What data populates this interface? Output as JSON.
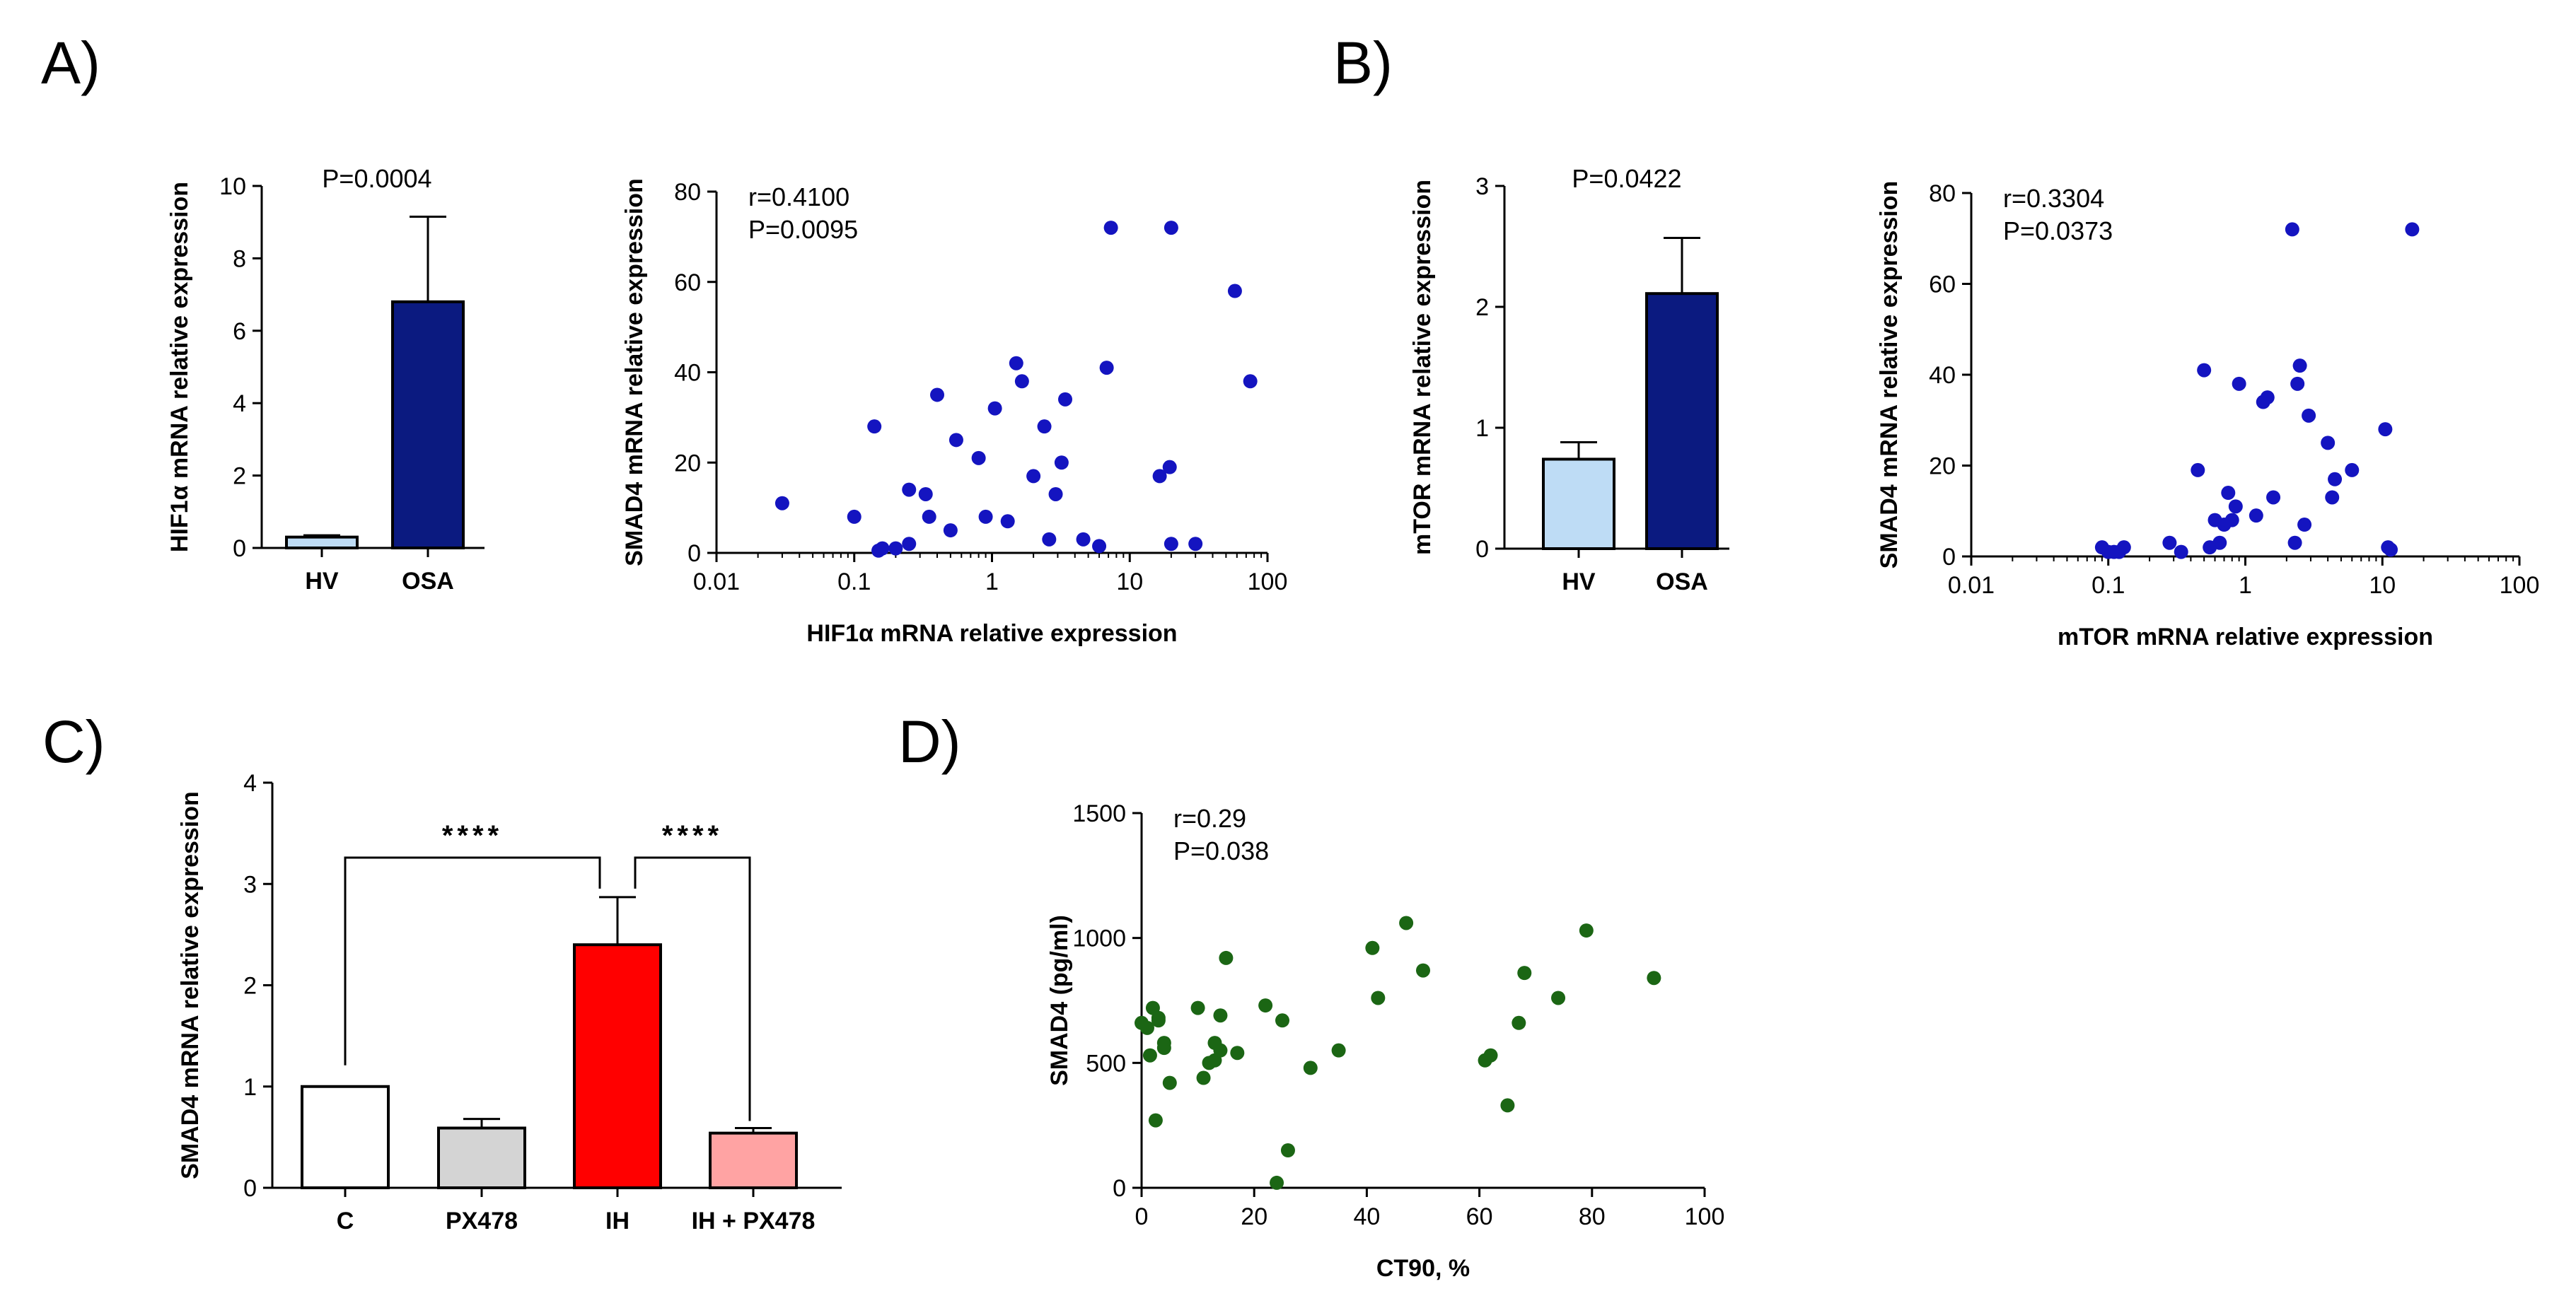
{
  "figure": {
    "panel_labels": [
      "A)",
      "B)",
      "C)",
      "D)"
    ]
  },
  "colors": {
    "hv_bar": "#bedcf5",
    "osa_bar": "#0b1a80",
    "scatter_blue": "#1414c0",
    "scatter_green": "#1b6614",
    "c_bar": "#ffffff",
    "px478_bar": "#d4d4d4",
    "ih_bar": "#ff0000",
    "ihpx_bar": "#ffa3a3"
  },
  "chart_data": [
    {
      "id": "a_bar",
      "type": "bar",
      "categories": [
        "HV",
        "OSA"
      ],
      "values": [
        0.3,
        6.8
      ],
      "errors": [
        0.05,
        2.35
      ],
      "ylabel": "HIF1α mRNA relative expression",
      "ylim": [
        0,
        10
      ],
      "yticks": [
        0,
        2,
        4,
        6,
        8,
        10
      ],
      "annotations": [
        "P=0.0004"
      ]
    },
    {
      "id": "a_scatter",
      "type": "scatter",
      "xscale": "log",
      "xlabel": "HIF1α mRNA relative expression",
      "ylabel": "SMAD4 mRNA relative expression",
      "xlim": [
        0.01,
        100
      ],
      "ylim": [
        0,
        80
      ],
      "xticks": [
        "0.01",
        "0.1",
        "1",
        "10",
        "100"
      ],
      "yticks": [
        0,
        20,
        40,
        60,
        80
      ],
      "annotations": [
        "r=0.4100",
        "P=0.0095"
      ],
      "x": [
        0.03,
        0.1,
        0.14,
        0.16,
        0.2,
        0.15,
        0.25,
        0.25,
        0.33,
        0.35,
        0.4,
        0.5,
        0.55,
        0.8,
        0.9,
        1.05,
        1.3,
        1.5,
        1.65,
        2.0,
        2.4,
        2.6,
        2.9,
        3.2,
        3.4,
        4.6,
        6.0,
        6.8,
        7.3,
        16.5,
        19.5,
        20.0,
        20.0,
        30.0,
        58.0,
        75.0
      ],
      "y": [
        11,
        8,
        28,
        1,
        1,
        0.5,
        2,
        14,
        13,
        8,
        35,
        5,
        25,
        21,
        8,
        32,
        7,
        42,
        38,
        17,
        28,
        3,
        13,
        20,
        34,
        3,
        1.5,
        41,
        72,
        17,
        19,
        72,
        2,
        2,
        58,
        38
      ]
    },
    {
      "id": "b_bar",
      "type": "bar",
      "categories": [
        "HV",
        "OSA"
      ],
      "values": [
        0.74,
        2.11
      ],
      "errors": [
        0.14,
        0.46
      ],
      "ylabel": "mTOR mRNA relative expression",
      "ylim": [
        0,
        3
      ],
      "yticks": [
        0,
        1,
        2,
        3
      ],
      "annotations": [
        "P=0.0422"
      ]
    },
    {
      "id": "b_scatter",
      "type": "scatter",
      "xscale": "log",
      "xlabel": "mTOR mRNA relative expression",
      "ylabel": "SMAD4 mRNA relative expression",
      "xlim": [
        0.01,
        100
      ],
      "ylim": [
        0,
        80
      ],
      "xticks": [
        "0.01",
        "0.1",
        "1",
        "10",
        "100"
      ],
      "yticks": [
        0,
        20,
        40,
        60,
        80
      ],
      "annotations": [
        "r=0.3304",
        "P=0.0373"
      ],
      "x": [
        0.09,
        0.1,
        0.12,
        0.13,
        0.11,
        0.28,
        0.34,
        0.45,
        0.5,
        0.55,
        0.6,
        0.65,
        0.7,
        0.75,
        0.8,
        0.85,
        0.9,
        1.2,
        1.35,
        1.45,
        1.6,
        2.2,
        2.3,
        2.4,
        2.5,
        2.7,
        2.9,
        4.0,
        4.3,
        4.5,
        6.0,
        10.5,
        11.0,
        11.5,
        16.5
      ],
      "y": [
        2,
        1,
        1,
        2,
        1,
        3,
        1,
        19,
        41,
        2,
        8,
        3,
        7,
        14,
        8,
        11,
        38,
        9,
        34,
        35,
        13,
        72,
        3,
        38,
        42,
        7,
        31,
        25,
        13,
        17,
        19,
        28,
        2,
        1.5,
        72
      ]
    },
    {
      "id": "c_bar",
      "type": "bar",
      "categories": [
        "C",
        "PX478",
        "IH",
        "IH + PX478"
      ],
      "values": [
        1.0,
        0.59,
        2.4,
        0.54
      ],
      "errors": [
        0.0,
        0.09,
        0.47,
        0.05
      ],
      "ylabel": "SMAD4 mRNA relative expression",
      "ylim": [
        0,
        4
      ],
      "yticks": [
        0,
        1,
        2,
        3,
        4
      ],
      "significance": [
        {
          "from": "C",
          "to": "IH",
          "label": "****"
        },
        {
          "from": "IH",
          "to": "IH + PX478",
          "label": "****"
        }
      ]
    },
    {
      "id": "d_scatter",
      "type": "scatter",
      "xlabel": "CT90, %",
      "ylabel": "SMAD4 (pg/ml)",
      "xlim": [
        0,
        100
      ],
      "ylim": [
        0,
        1500
      ],
      "xticks": [
        0,
        20,
        40,
        60,
        80,
        100
      ],
      "yticks": [
        0,
        500,
        1000,
        1500
      ],
      "annotations": [
        "r=0.29",
        "P=0.038"
      ],
      "x": [
        0,
        1,
        2,
        3,
        1.5,
        2.5,
        4,
        5,
        3,
        4,
        10,
        11,
        13,
        14,
        12,
        13,
        15,
        17,
        14,
        22,
        25,
        26,
        24,
        30,
        35,
        41,
        42,
        47,
        50,
        61,
        62,
        65,
        67,
        68,
        74,
        79,
        91
      ],
      "y": [
        660,
        640,
        720,
        670,
        530,
        270,
        580,
        420,
        680,
        560,
        720,
        440,
        580,
        690,
        500,
        510,
        920,
        540,
        550,
        730,
        670,
        150,
        20,
        480,
        550,
        960,
        760,
        1060,
        870,
        510,
        530,
        330,
        660,
        860,
        760,
        1030,
        840
      ]
    }
  ]
}
